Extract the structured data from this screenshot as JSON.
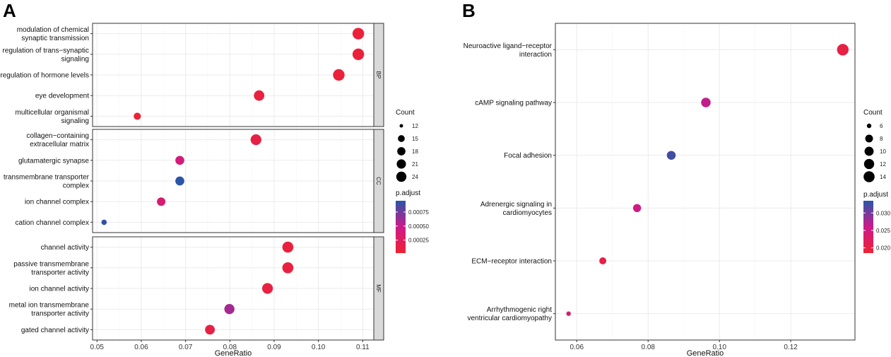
{
  "colors": {
    "low": "#ee2233",
    "mid": "#cc1a8a",
    "high": "#2a55a8"
  },
  "chart_data": [
    {
      "panel": "A",
      "type": "scatter",
      "xlabel": "GeneRatio",
      "xlim": [
        0.049,
        0.1125
      ],
      "xticks": [
        0.05,
        0.06,
        0.07,
        0.08,
        0.09,
        0.1,
        0.11
      ],
      "xtick_labels": [
        "0.05",
        "0.06",
        "0.07",
        "0.08",
        "0.09",
        "0.10",
        "0.11"
      ],
      "facets": [
        {
          "name": "BP",
          "terms": [
            {
              "label": [
                "modulation of chemical",
                "synaptic transmission"
              ],
              "x": 0.109,
              "count": 24,
              "p_adjust": 5e-05
            },
            {
              "label": [
                "regulation of trans−synaptic",
                "signaling"
              ],
              "x": 0.109,
              "count": 24,
              "p_adjust": 5e-05
            },
            {
              "label": [
                "regulation of hormone levels"
              ],
              "x": 0.1046,
              "count": 24,
              "p_adjust": 6e-05
            },
            {
              "label": [
                "eye development"
              ],
              "x": 0.0866,
              "count": 20,
              "p_adjust": 8e-05
            },
            {
              "label": [
                "multicellular organismal",
                "signaling"
              ],
              "x": 0.0591,
              "count": 13,
              "p_adjust": 4e-05
            }
          ]
        },
        {
          "name": "CC",
          "terms": [
            {
              "label": [
                "collagen−containing",
                "extracellular matrix"
              ],
              "x": 0.0859,
              "count": 21,
              "p_adjust": 0.00012
            },
            {
              "label": [
                "glutamatergic synapse"
              ],
              "x": 0.0687,
              "count": 16,
              "p_adjust": 0.0004
            },
            {
              "label": [
                "transmembrane transporter",
                "complex"
              ],
              "x": 0.0687,
              "count": 16,
              "p_adjust": 0.00095
            },
            {
              "label": [
                "ion channel complex"
              ],
              "x": 0.0645,
              "count": 15,
              "p_adjust": 0.00035
            },
            {
              "label": [
                "cation channel complex"
              ],
              "x": 0.0516,
              "count": 12,
              "p_adjust": 0.00093
            }
          ]
        },
        {
          "name": "MF",
          "terms": [
            {
              "label": [
                "channel activity"
              ],
              "x": 0.0931,
              "count": 22,
              "p_adjust": 8e-05
            },
            {
              "label": [
                "passive transmembrane",
                "transporter activity"
              ],
              "x": 0.0931,
              "count": 22,
              "p_adjust": 8e-05
            },
            {
              "label": [
                "ion channel activity"
              ],
              "x": 0.0885,
              "count": 21,
              "p_adjust": 0.0001
            },
            {
              "label": [
                "metal ion transmembrane",
                "transporter activity"
              ],
              "x": 0.0799,
              "count": 19,
              "p_adjust": 0.0006
            },
            {
              "label": [
                "gated channel activity"
              ],
              "x": 0.0755,
              "count": 18,
              "p_adjust": 0.00012
            }
          ]
        }
      ],
      "size_legend": {
        "title": "Count",
        "values": [
          12,
          15,
          18,
          21,
          24
        ],
        "labels": [
          "12",
          "15",
          "18",
          "21",
          "24"
        ]
      },
      "color_legend": {
        "title": "p.adjust",
        "range": [
          2e-05,
          0.00095
        ],
        "ticks": [
          0.00075,
          0.0005,
          0.00025
        ],
        "tick_labels": [
          "0.00075",
          "0.00050",
          "0.00025"
        ]
      }
    },
    {
      "panel": "B",
      "type": "scatter",
      "xlabel": "GeneRatio",
      "xlim": [
        0.054,
        0.138
      ],
      "xticks": [
        0.06,
        0.08,
        0.1,
        0.12
      ],
      "xtick_labels": [
        "0.06",
        "0.08",
        "0.10",
        "0.12"
      ],
      "terms": [
        {
          "label": [
            "Neuroactive ligand−receptor",
            "interaction"
          ],
          "x": 0.1346,
          "count": 14,
          "p_adjust": 0.02
        },
        {
          "label": [
            "cAMP signaling pathway"
          ],
          "x": 0.0962,
          "count": 10,
          "p_adjust": 0.0265
        },
        {
          "label": [
            "Focal adhesion"
          ],
          "x": 0.0865,
          "count": 9,
          "p_adjust": 0.0325
        },
        {
          "label": [
            "Adrenergic signaling in",
            "cardiomyocytes"
          ],
          "x": 0.0769,
          "count": 8,
          "p_adjust": 0.0255
        },
        {
          "label": [
            "ECM−receptor interaction"
          ],
          "x": 0.0673,
          "count": 7,
          "p_adjust": 0.02
        },
        {
          "label": [
            "Arrhythmogenic right",
            "ventricular cardiomyopathy"
          ],
          "x": 0.0577,
          "count": 6,
          "p_adjust": 0.0235
        }
      ],
      "size_legend": {
        "title": "Count",
        "values": [
          6,
          8,
          10,
          12,
          14
        ],
        "labels": [
          "6",
          "8",
          "10",
          "12",
          "14"
        ]
      },
      "color_legend": {
        "title": "p.adjust",
        "range": [
          0.0185,
          0.0335
        ],
        "ticks": [
          0.03,
          0.025,
          0.02
        ],
        "tick_labels": [
          "0.030",
          "0.025",
          "0.020"
        ]
      }
    }
  ]
}
